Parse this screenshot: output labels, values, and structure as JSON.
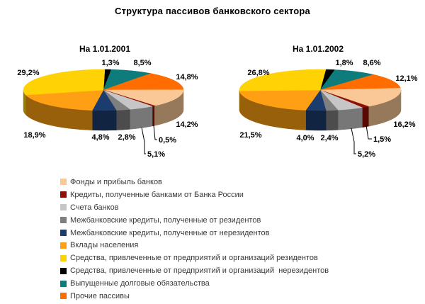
{
  "title": "Структура пассивов банковского сектора",
  "chart_data": {
    "type": "pie",
    "title": "Структура пассивов банковского сектора",
    "subtype": "3d-pie-pair",
    "value_unit": "%",
    "decimal_separator": ",",
    "legend_position": "bottom-left",
    "categories": [
      "Фонды и прибыль банков",
      "Кредиты, полученные банками от Банка России",
      "Счета банков",
      "Межбанковские кредиты, полученные от резидентов",
      "Межбанковские кредиты, полученные от нерезидентов",
      "Вклады населения",
      "Средства, привлеченные от предприятий и организаций резидентов",
      "Средства, привлеченные от предприятий и организаций  нерезидентов",
      "Выпущенные долговые обязательства",
      "Прочие пассивы"
    ],
    "colors": [
      "#FAC896",
      "#8F1105",
      "#C6C6C6",
      "#7F7F7F",
      "#1D3C6E",
      "#FFA014",
      "#FFD205",
      "#000000",
      "#0E7C7B",
      "#FF6D00"
    ],
    "pies": [
      {
        "title": "На 1.01.2001",
        "values": [
          14.2,
          0.5,
          5.1,
          2.8,
          4.8,
          18.9,
          29.2,
          1.3,
          8.5,
          14.8
        ],
        "display_labels": [
          "14,2%",
          "0,5%",
          "5,1%",
          "2,8%",
          "4,8%",
          "18,9%",
          "29,2%",
          "1,3%",
          "8,5%",
          "14,8%"
        ]
      },
      {
        "title": "На 1.01.2002",
        "values": [
          16.2,
          1.5,
          5.2,
          2.4,
          4.0,
          21.5,
          26.8,
          1.8,
          8.6,
          12.1
        ],
        "display_labels": [
          "16,2%",
          "1,5%",
          "5,2%",
          "2,4%",
          "4,0%",
          "21,5%",
          "26,8%",
          "1,8%",
          "8,6%",
          "12,1%"
        ]
      }
    ]
  },
  "legend": {
    "items": [
      {
        "label": "Фонды и прибыль банков",
        "color": "#FAC896"
      },
      {
        "label": "Кредиты, полученные банками от Банка России",
        "color": "#8F1105"
      },
      {
        "label": "Счета банков",
        "color": "#C6C6C6"
      },
      {
        "label": "Межбанковские кредиты, полученные от резидентов",
        "color": "#7F7F7F"
      },
      {
        "label": "Межбанковские кредиты, полученные от нерезидентов",
        "color": "#1D3C6E"
      },
      {
        "label": "Вклады населения",
        "color": "#FFA014"
      },
      {
        "label": "Средства, привлеченные от предприятий и организаций резидентов",
        "color": "#FFD205"
      },
      {
        "label": "Средства, привлеченные от предприятий и организаций  нерезидентов",
        "color": "#000000"
      },
      {
        "label": "Выпущенные долговые обязательства",
        "color": "#0E7C7B"
      },
      {
        "label": "Прочие пассивы",
        "color": "#FF6D00"
      }
    ]
  }
}
